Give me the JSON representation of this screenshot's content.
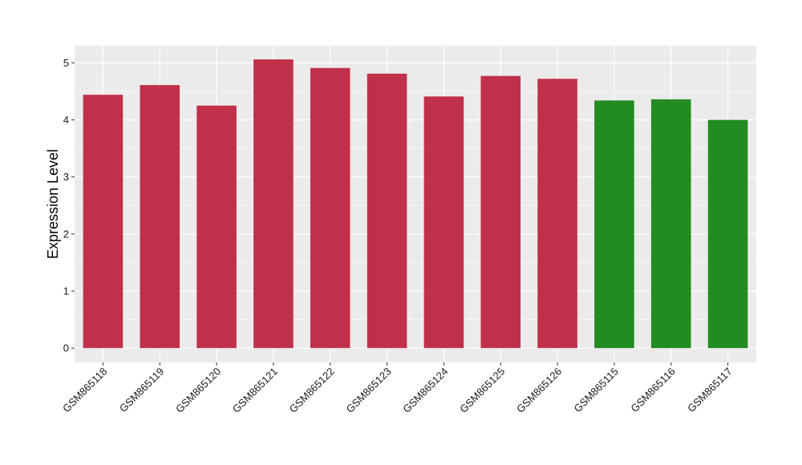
{
  "chart_data": {
    "type": "bar",
    "title": "",
    "xlabel": "",
    "ylabel": "Expression Level",
    "ylim": [
      -0.25,
      5.3
    ],
    "yticks": [
      0,
      1,
      2,
      3,
      4,
      5
    ],
    "grid": true,
    "legend": "none",
    "categories": [
      "GSM865118",
      "GSM865119",
      "GSM865120",
      "GSM865121",
      "GSM865122",
      "GSM865123",
      "GSM865124",
      "GSM865125",
      "GSM865126",
      "GSM865115",
      "GSM865116",
      "GSM865117"
    ],
    "values": [
      4.44,
      4.61,
      4.25,
      5.06,
      4.91,
      4.81,
      4.41,
      4.77,
      4.72,
      4.34,
      4.36,
      4.0
    ],
    "bar_colors": [
      "#c1304a",
      "#c1304a",
      "#c1304a",
      "#c1304a",
      "#c1304a",
      "#c1304a",
      "#c1304a",
      "#c1304a",
      "#c1304a",
      "#228b22",
      "#228b22",
      "#228b22"
    ],
    "panel_background": "#ebebeb",
    "gridline_color": "#ffffff"
  }
}
